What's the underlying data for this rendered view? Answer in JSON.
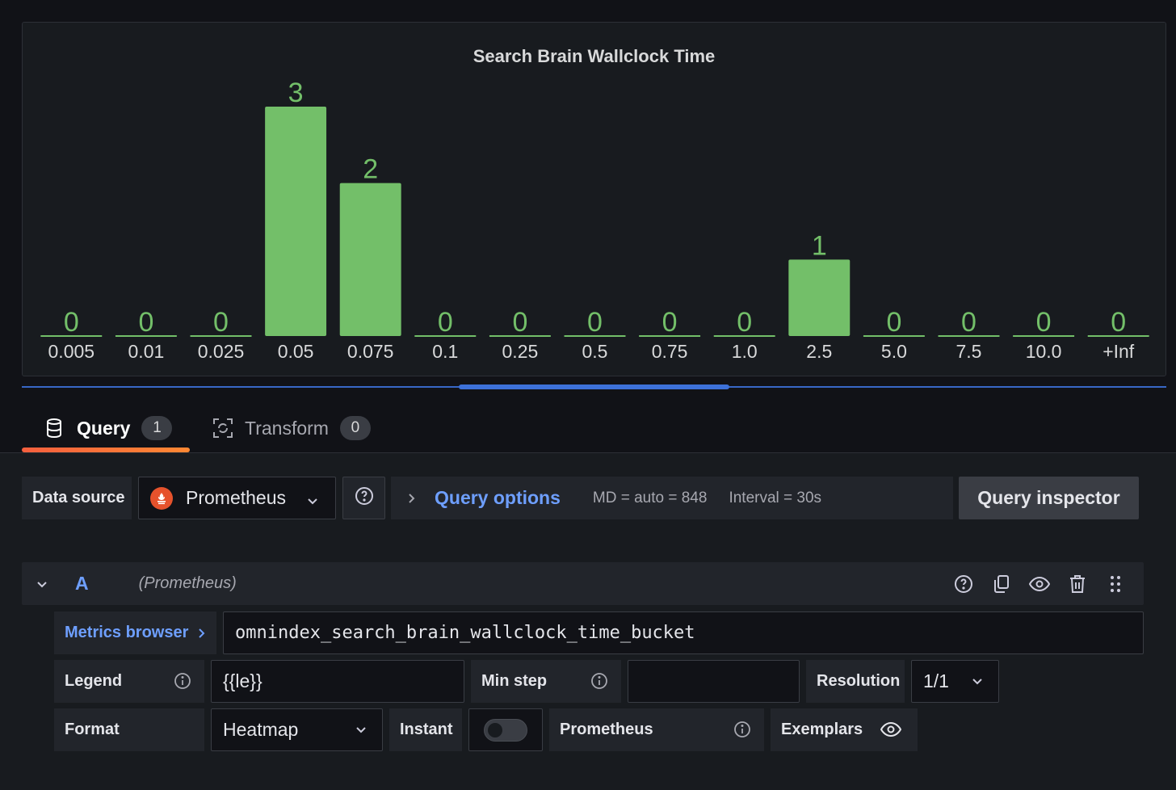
{
  "panel": {
    "title": "Search Brain Wallclock Time"
  },
  "chart_data": {
    "type": "bar",
    "title": "Search Brain Wallclock Time",
    "categories": [
      "0.005",
      "0.01",
      "0.025",
      "0.05",
      "0.075",
      "0.1",
      "0.25",
      "0.5",
      "0.75",
      "1.0",
      "2.5",
      "5.0",
      "7.5",
      "10.0",
      "+Inf"
    ],
    "values": [
      0,
      0,
      0,
      3,
      2,
      0,
      0,
      0,
      0,
      0,
      1,
      0,
      0,
      0,
      0
    ],
    "ylim": [
      0,
      3
    ],
    "color": "#73bf69",
    "xlabel": "",
    "ylabel": ""
  },
  "tabs": {
    "query": {
      "label": "Query",
      "count": "1"
    },
    "transform": {
      "label": "Transform",
      "count": "0"
    }
  },
  "toolbar": {
    "data_source_label": "Data source",
    "data_source_value": "Prometheus",
    "query_options_label": "Query options",
    "md": "MD = auto = 848",
    "interval": "Interval = 30s",
    "query_inspector_label": "Query inspector"
  },
  "query": {
    "ref_id": "A",
    "datasource": "(Prometheus)",
    "metrics_browser_label": "Metrics browser",
    "expression": "omnindex_search_brain_wallclock_time_bucket",
    "legend_label": "Legend",
    "legend_value": "{{le}}",
    "min_step_label": "Min step",
    "min_step_value": "",
    "resolution_label": "Resolution",
    "resolution_value": "1/1",
    "format_label": "Format",
    "format_value": "Heatmap",
    "instant_label": "Instant",
    "instant_enabled": false,
    "type_label": "Prometheus",
    "exemplars_label": "Exemplars"
  },
  "colors": {
    "accent": "#6e9fff",
    "bar": "#73bf69",
    "tab_underline": "#f55f3e",
    "prometheus": "#e6522c"
  }
}
